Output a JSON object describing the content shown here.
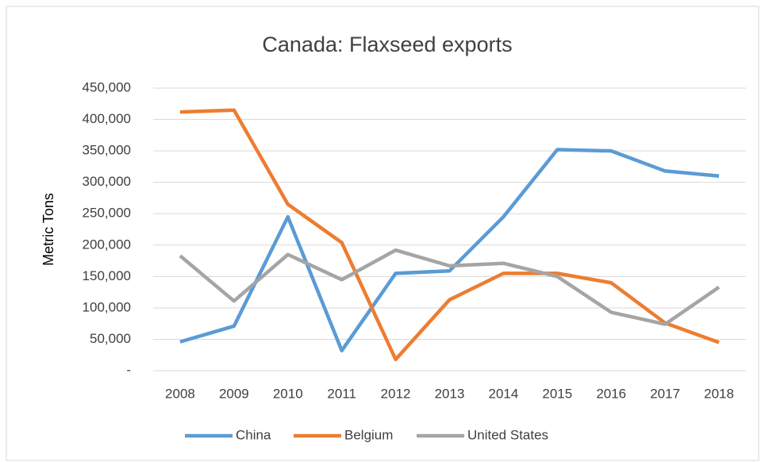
{
  "chart_data": {
    "type": "line",
    "title": "Canada: Flaxseed exports",
    "y_label": "Metric Tons",
    "categories": [
      "2008",
      "2009",
      "2010",
      "2011",
      "2012",
      "2013",
      "2014",
      "2015",
      "2016",
      "2017",
      "2018"
    ],
    "series": [
      {
        "name": "China",
        "color": "#5b9bd5",
        "values": [
          46000,
          71000,
          245000,
          32000,
          155000,
          159000,
          245000,
          352000,
          350000,
          318000,
          310000
        ]
      },
      {
        "name": "Belgium",
        "color": "#ed7d31",
        "values": [
          412000,
          415000,
          265000,
          204000,
          18000,
          113000,
          155000,
          155000,
          140000,
          76000,
          45000
        ]
      },
      {
        "name": "United States",
        "color": "#a5a5a5",
        "values": [
          183000,
          111000,
          185000,
          145000,
          192000,
          167000,
          171000,
          150000,
          93000,
          74000,
          133000
        ]
      }
    ],
    "ylim": [
      0,
      450000
    ],
    "yticks": [
      {
        "value": 0,
        "label": "-"
      },
      {
        "value": 50000,
        "label": "50,000"
      },
      {
        "value": 100000,
        "label": "100,000"
      },
      {
        "value": 150000,
        "label": "150,000"
      },
      {
        "value": 200000,
        "label": "200,000"
      },
      {
        "value": 250000,
        "label": "250,000"
      },
      {
        "value": 300000,
        "label": "300,000"
      },
      {
        "value": 350000,
        "label": "350,000"
      },
      {
        "value": 400000,
        "label": "400,000"
      },
      {
        "value": 450000,
        "label": "450,000"
      }
    ],
    "grid": true,
    "legend": "bottom"
  }
}
